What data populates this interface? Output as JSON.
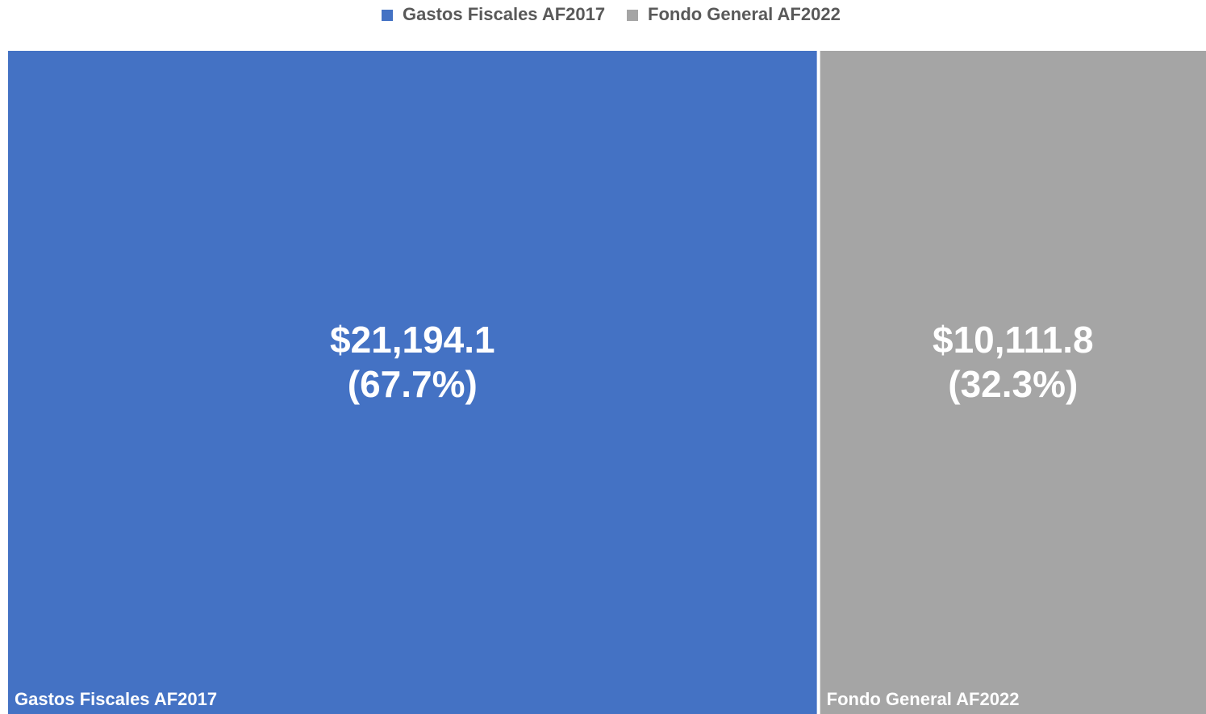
{
  "chart_data": {
    "type": "treemap",
    "categories": [
      "Gastos Fiscales AF2017",
      "Fondo General AF2022"
    ],
    "values": [
      21194.1,
      10111.8
    ],
    "value_labels": [
      "$21,194.1",
      "$10,111.8"
    ],
    "percents": [
      67.7,
      32.3
    ],
    "percent_labels": [
      "(67.7%)",
      "(32.3%)"
    ],
    "colors": [
      "#4472c4",
      "#a5a5a5"
    ],
    "legend": "top"
  }
}
